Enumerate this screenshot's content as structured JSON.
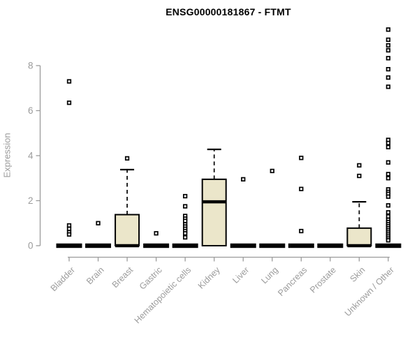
{
  "chart_data": {
    "type": "boxplot",
    "title": "ENSG00000181867 - FTMT",
    "ylabel": "Expression",
    "xlabel": "",
    "yticks": [
      0,
      2,
      4,
      6,
      8
    ],
    "ylim": [
      0,
      9.8
    ],
    "grid": false,
    "legend": "none",
    "colors": {
      "box_fill": "#ebe6ca",
      "box_stroke": "#000000",
      "median": "#000000",
      "outlier_stroke": "#000000",
      "axis": "#9b9b9b",
      "tick_label": "#9b9b9b",
      "title": "#000000"
    },
    "categories": [
      "Bladder",
      "Brain",
      "Breast",
      "Gastric",
      "Hematopoietic cells",
      "Kidney",
      "Liver",
      "Lung",
      "Pancreas",
      "Prostate",
      "Skin",
      "Unknown / Other"
    ],
    "boxes": [
      {
        "name": "Bladder",
        "q1": 0,
        "median": 0,
        "q3": 0,
        "whisker_low": 0,
        "whisker_high": 0,
        "outliers": [
          7.3,
          6.35,
          0.9,
          0.75,
          0.6,
          0.5
        ]
      },
      {
        "name": "Brain",
        "q1": 0,
        "median": 0,
        "q3": 0,
        "whisker_low": 0,
        "whisker_high": 0,
        "outliers": [
          1.0
        ]
      },
      {
        "name": "Breast",
        "q1": 0,
        "median": 0,
        "q3": 1.38,
        "whisker_low": 0,
        "whisker_high": 3.38,
        "outliers": [
          3.88
        ]
      },
      {
        "name": "Gastric",
        "q1": 0,
        "median": 0,
        "q3": 0,
        "whisker_low": 0,
        "whisker_high": 0,
        "outliers": [
          0.55
        ]
      },
      {
        "name": "Hematopoietic cells",
        "q1": 0,
        "median": 0,
        "q3": 0,
        "whisker_low": 0,
        "whisker_high": 0,
        "outliers": [
          2.2,
          1.75,
          1.32,
          1.2,
          1.1,
          0.95,
          0.85,
          0.75,
          0.65,
          0.55,
          0.37
        ]
      },
      {
        "name": "Kidney",
        "q1": 0,
        "median": 1.95,
        "q3": 2.95,
        "whisker_low": 0,
        "whisker_high": 4.28,
        "outliers": []
      },
      {
        "name": "Liver",
        "q1": 0,
        "median": 0,
        "q3": 0,
        "whisker_low": 0,
        "whisker_high": 0,
        "outliers": [
          2.95
        ]
      },
      {
        "name": "Lung",
        "q1": 0,
        "median": 0,
        "q3": 0,
        "whisker_low": 0,
        "whisker_high": 0,
        "outliers": [
          3.32
        ]
      },
      {
        "name": "Pancreas",
        "q1": 0,
        "median": 0,
        "q3": 0,
        "whisker_low": 0,
        "whisker_high": 0,
        "outliers": [
          3.9,
          2.52,
          0.65
        ]
      },
      {
        "name": "Prostate",
        "q1": 0,
        "median": 0,
        "q3": 0,
        "whisker_low": 0,
        "whisker_high": 0,
        "outliers": []
      },
      {
        "name": "Skin",
        "q1": 0,
        "median": 0,
        "q3": 0.78,
        "whisker_low": 0,
        "whisker_high": 1.95,
        "outliers": [
          3.57,
          3.1
        ]
      },
      {
        "name": "Unknown / Other",
        "q1": 0,
        "median": 0,
        "q3": 0,
        "whisker_low": 0,
        "whisker_high": 0,
        "outliers": [
          9.6,
          9.15,
          8.9,
          8.68,
          8.33,
          7.84,
          7.47,
          7.06,
          4.7,
          4.56,
          4.38,
          3.7,
          3.18,
          3.0,
          2.5,
          2.39,
          2.3,
          2.18,
          1.79,
          1.48,
          1.3,
          1.15,
          1.05,
          0.95,
          0.86,
          0.77,
          0.68,
          0.59,
          0.5,
          0.41,
          0.32,
          0.24
        ]
      }
    ]
  }
}
